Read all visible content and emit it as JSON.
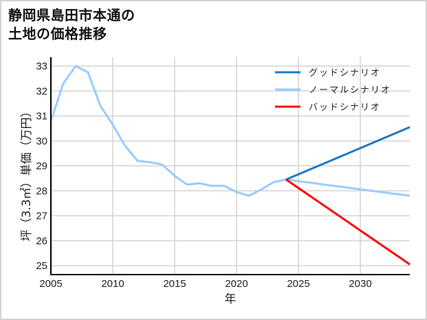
{
  "title": {
    "line1": "静岡県島田市本通の",
    "line2": "土地の価格推移"
  },
  "colors": {
    "good": "#1f77c8",
    "normal": "#99ccff",
    "bad": "#ff0000",
    "grid": "#d3d3d3",
    "axis": "#000000",
    "border": "#d3d3d3"
  },
  "chart_data": {
    "type": "line",
    "title": "静岡県島田市本通の土地の価格推移",
    "xlabel": "年",
    "ylabel": "坪（3.3㎡）単価（万円）",
    "xlim": [
      2005,
      2034
    ],
    "ylim": [
      24.65,
      33.35
    ],
    "x_ticks": [
      2005,
      2010,
      2015,
      2020,
      2025,
      2030
    ],
    "y_ticks": [
      25,
      26,
      27,
      28,
      29,
      30,
      31,
      32,
      33
    ],
    "grid": true,
    "legend_position": "upper right",
    "series": [
      {
        "name": "グッドシナリオ",
        "color": "#1f77c8",
        "x": [
          2024,
          2034
        ],
        "values": [
          28.45,
          30.55
        ]
      },
      {
        "name": "ノーマルシナリオ",
        "color": "#99ccff",
        "x": [
          2005,
          2006,
          2007,
          2008,
          2009,
          2010,
          2011,
          2012,
          2013,
          2014,
          2015,
          2016,
          2017,
          2018,
          2019,
          2020,
          2021,
          2022,
          2023,
          2024,
          2034
        ],
        "values": [
          30.8,
          32.3,
          33.0,
          32.75,
          31.4,
          30.65,
          29.8,
          29.2,
          29.15,
          29.05,
          28.6,
          28.25,
          28.3,
          28.2,
          28.2,
          27.95,
          27.8,
          28.05,
          28.35,
          28.45,
          27.8
        ]
      },
      {
        "name": "バッドシナリオ",
        "color": "#ff0000",
        "x": [
          2024,
          2034
        ],
        "values": [
          28.45,
          25.05
        ]
      }
    ]
  },
  "legend": {
    "items": [
      {
        "label": "グッドシナリオ",
        "color": "#1f77c8"
      },
      {
        "label": "ノーマルシナリオ",
        "color": "#99ccff"
      },
      {
        "label": "バッドシナリオ",
        "color": "#ff0000"
      }
    ]
  },
  "axes": {
    "xlabel": "年",
    "ylabel": "坪（3.3㎡）単価（万円）",
    "x_tick_labels": [
      "2005",
      "2010",
      "2015",
      "2020",
      "2025",
      "2030"
    ],
    "y_tick_labels": [
      "33",
      "32",
      "31",
      "30",
      "29",
      "28",
      "27",
      "26",
      "25"
    ]
  }
}
